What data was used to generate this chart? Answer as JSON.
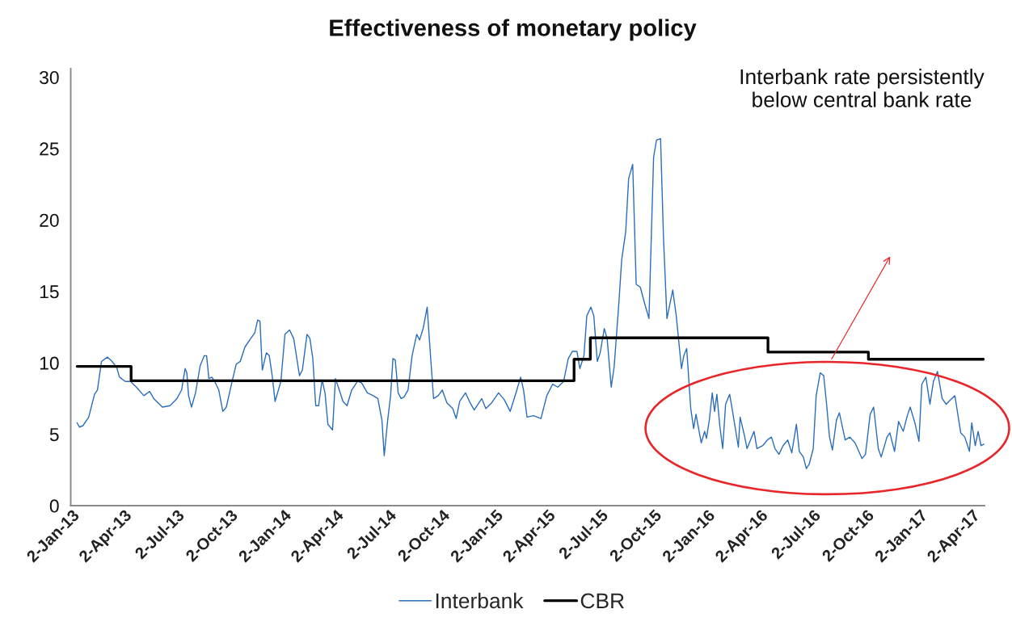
{
  "chart_data": {
    "type": "line",
    "title": "Effectiveness of monetary policy",
    "series": [
      {
        "name": "Interbank",
        "color": "#2a6ebb",
        "x": [
          "2013-01-02",
          "2013-01-06",
          "2013-01-12",
          "2013-01-22",
          "2013-02-01",
          "2013-02-06",
          "2013-02-13",
          "2013-02-23",
          "2013-03-01",
          "2013-03-11",
          "2013-03-16",
          "2013-03-26",
          "2013-04-04",
          "2013-04-14",
          "2013-04-27",
          "2013-05-07",
          "2013-05-14",
          "2013-05-29",
          "2013-06-11",
          "2013-06-23",
          "2013-07-01",
          "2013-07-07",
          "2013-07-10",
          "2013-07-13",
          "2013-07-18",
          "2013-07-25",
          "2013-08-02",
          "2013-08-09",
          "2013-08-13",
          "2013-08-17",
          "2013-08-22",
          "2013-08-27",
          "2013-09-03",
          "2013-09-10",
          "2013-09-16",
          "2013-09-26",
          "2013-10-03",
          "2013-10-10",
          "2013-10-18",
          "2013-10-28",
          "2013-11-04",
          "2013-11-09",
          "2013-11-13",
          "2013-11-17",
          "2013-11-24",
          "2013-11-29",
          "2013-12-04",
          "2013-12-09",
          "2013-12-14",
          "2013-12-19",
          "2013-12-26",
          "2014-01-03",
          "2014-01-10",
          "2014-01-14",
          "2014-01-20",
          "2014-01-25",
          "2014-02-02",
          "2014-02-07",
          "2014-02-12",
          "2014-02-17",
          "2014-02-22",
          "2014-02-28",
          "2014-03-05",
          "2014-03-10",
          "2014-03-18",
          "2014-03-23",
          "2014-03-28",
          "2014-04-05",
          "2014-04-12",
          "2014-04-20",
          "2014-04-30",
          "2014-05-07",
          "2014-05-17",
          "2014-05-27",
          "2014-06-04",
          "2014-06-11",
          "2014-06-15",
          "2014-06-21",
          "2014-06-26",
          "2014-06-30",
          "2014-07-04",
          "2014-07-09",
          "2014-07-14",
          "2014-07-19",
          "2014-07-26",
          "2014-08-02",
          "2014-08-10",
          "2014-08-15",
          "2014-08-21",
          "2014-08-28",
          "2014-09-01",
          "2014-09-08",
          "2014-09-16",
          "2014-09-23",
          "2014-10-01",
          "2014-10-11",
          "2014-10-17",
          "2014-10-23",
          "2014-11-02",
          "2014-11-10",
          "2014-11-17",
          "2014-11-30",
          "2014-12-07",
          "2014-12-17",
          "2014-12-29",
          "2015-01-08",
          "2015-01-18",
          "2015-01-28",
          "2015-02-05",
          "2015-02-10",
          "2015-02-16",
          "2015-02-27",
          "2015-03-12",
          "2015-03-22",
          "2015-04-01",
          "2015-04-10",
          "2015-04-20",
          "2015-04-28",
          "2015-05-05",
          "2015-05-13",
          "2015-05-18",
          "2015-05-25",
          "2015-05-30",
          "2015-06-06",
          "2015-06-11",
          "2015-06-17",
          "2015-06-22",
          "2015-06-29",
          "2015-07-04",
          "2015-07-11",
          "2015-07-16",
          "2015-07-24",
          "2015-07-29",
          "2015-08-05",
          "2015-08-10",
          "2015-08-17",
          "2015-08-23",
          "2015-08-30",
          "2015-09-07",
          "2015-09-14",
          "2015-09-22",
          "2015-09-27",
          "2015-10-04",
          "2015-10-09",
          "2015-10-15",
          "2015-10-25",
          "2015-10-31",
          "2015-11-09",
          "2015-11-13",
          "2015-11-18",
          "2015-11-25",
          "2015-11-30",
          "2015-12-04",
          "2015-12-13",
          "2015-12-19",
          "2015-12-22",
          "2015-12-27",
          "2016-01-01",
          "2016-01-05",
          "2016-01-09",
          "2016-01-14",
          "2016-01-19",
          "2016-01-24",
          "2016-01-31",
          "2016-02-05",
          "2016-02-15",
          "2016-02-18",
          "2016-02-25",
          "2016-03-01",
          "2016-03-13",
          "2016-03-18",
          "2016-03-28",
          "2016-04-05",
          "2016-04-12",
          "2016-04-18",
          "2016-04-25",
          "2016-05-02",
          "2016-05-10",
          "2016-05-17",
          "2016-05-25",
          "2016-05-30",
          "2016-06-06",
          "2016-06-11",
          "2016-06-16",
          "2016-06-23",
          "2016-06-28",
          "2016-07-05",
          "2016-07-11",
          "2016-07-16",
          "2016-07-21",
          "2016-07-26",
          "2016-08-02",
          "2016-08-07",
          "2016-08-17",
          "2016-08-25",
          "2016-09-03",
          "2016-09-15",
          "2016-09-21",
          "2016-09-29",
          "2016-10-05",
          "2016-10-13",
          "2016-10-18",
          "2016-10-28",
          "2016-11-02",
          "2016-11-10",
          "2016-11-17",
          "2016-11-25",
          "2016-12-02",
          "2016-12-07",
          "2016-12-15",
          "2016-12-22",
          "2016-12-27",
          "2017-01-03",
          "2017-01-10",
          "2017-01-16",
          "2017-01-23",
          "2017-01-31",
          "2017-02-07",
          "2017-02-14",
          "2017-02-22",
          "2017-02-27",
          "2017-03-04",
          "2017-03-11",
          "2017-03-19",
          "2017-03-23",
          "2017-03-29",
          "2017-04-03",
          "2017-04-08",
          "2017-04-13"
        ],
        "values": [
          5.8,
          5.5,
          5.6,
          6.2,
          7.8,
          8.1,
          10.1,
          10.4,
          10.2,
          9.7,
          9.0,
          8.7,
          8.7,
          8.3,
          7.7,
          8.0,
          7.5,
          6.9,
          7.0,
          7.5,
          8.1,
          9.6,
          9.3,
          7.7,
          6.9,
          7.9,
          9.8,
          10.5,
          10.5,
          8.9,
          9.0,
          8.7,
          8.1,
          6.6,
          6.9,
          8.7,
          9.9,
          10.1,
          11.1,
          11.7,
          12.1,
          13.0,
          12.9,
          9.5,
          10.7,
          10.5,
          9.1,
          7.3,
          8.0,
          8.7,
          12.0,
          12.3,
          11.7,
          10.7,
          9.1,
          9.5,
          12.0,
          11.7,
          10.3,
          7.0,
          7.0,
          8.8,
          7.9,
          5.7,
          5.3,
          8.9,
          8.3,
          7.3,
          7.0,
          8.1,
          8.7,
          8.6,
          7.9,
          7.7,
          7.5,
          6.0,
          3.5,
          6.0,
          7.7,
          10.3,
          10.2,
          7.9,
          7.5,
          7.6,
          8.1,
          10.5,
          12.0,
          11.6,
          12.4,
          13.9,
          11.5,
          7.5,
          7.7,
          8.1,
          7.2,
          6.8,
          6.1,
          7.3,
          7.9,
          7.2,
          6.7,
          7.5,
          6.8,
          7.2,
          7.9,
          7.4,
          6.6,
          7.9,
          9.0,
          8.1,
          6.2,
          6.3,
          6.1,
          7.7,
          8.5,
          8.3,
          8.7,
          10.3,
          10.8,
          10.8,
          9.6,
          10.5,
          13.3,
          13.9,
          13.3,
          10.1,
          10.7,
          12.4,
          11.7,
          8.3,
          9.7,
          14.1,
          17.2,
          19.2,
          22.9,
          23.9,
          15.5,
          15.3,
          14.1,
          13.1,
          24.4,
          25.6,
          25.7,
          18.8,
          13.1,
          15.1,
          13.3,
          9.6,
          10.5,
          11.0,
          6.8,
          5.4,
          6.4,
          4.4,
          5.2,
          4.7,
          6.0,
          7.9,
          6.6,
          7.8,
          5.6,
          4.0,
          7.1,
          7.8,
          6.6,
          4.1,
          6.2,
          5.0,
          4.0,
          5.2,
          4.0,
          4.2,
          4.6,
          4.8,
          4.0,
          3.6,
          4.2,
          4.6,
          3.7,
          5.7,
          3.8,
          3.4,
          2.6,
          2.9,
          4.0,
          7.7,
          9.3,
          9.1,
          7.1,
          4.8,
          3.9,
          6.0,
          6.5,
          4.6,
          4.8,
          4.4,
          3.3,
          3.6,
          6.4,
          6.9,
          4.0,
          3.4,
          4.8,
          5.1,
          3.8,
          5.9,
          5.2,
          6.3,
          6.9,
          5.8,
          4.5,
          8.5,
          9.0,
          7.1,
          8.7,
          9.4,
          7.5,
          7.1,
          7.4,
          7.7,
          6.4,
          5.1,
          4.8,
          3.8,
          5.8,
          4.2,
          5.2,
          4.2,
          4.3
        ]
      },
      {
        "name": "CBR",
        "type": "step",
        "color": "#000000",
        "x": [
          "2013-01-02",
          "2013-04-05",
          "2015-05-08",
          "2015-06-05",
          "2016-04-06",
          "2016-09-26",
          "2017-04-12"
        ],
        "values": [
          9.75,
          8.75,
          10.25,
          11.75,
          10.75,
          10.25,
          10.25
        ]
      }
    ],
    "xlim": [
      "2012-12-22",
      "2017-04-14"
    ],
    "xticks": [
      {
        "value": "2013-01-02",
        "label": "2-Jan-13"
      },
      {
        "value": "2013-04-02",
        "label": "2-Apr-13"
      },
      {
        "value": "2013-07-02",
        "label": "2-Jul-13"
      },
      {
        "value": "2013-10-02",
        "label": "2-Oct-13"
      },
      {
        "value": "2014-01-02",
        "label": "2-Jan-14"
      },
      {
        "value": "2014-04-02",
        "label": "2-Apr-14"
      },
      {
        "value": "2014-07-02",
        "label": "2-Jul-14"
      },
      {
        "value": "2014-10-02",
        "label": "2-Oct-14"
      },
      {
        "value": "2015-01-02",
        "label": "2-Jan-15"
      },
      {
        "value": "2015-04-02",
        "label": "2-Apr-15"
      },
      {
        "value": "2015-07-02",
        "label": "2-Jul-15"
      },
      {
        "value": "2015-10-02",
        "label": "2-Oct-15"
      },
      {
        "value": "2016-01-02",
        "label": "2-Jan-16"
      },
      {
        "value": "2016-04-02",
        "label": "2-Apr-16"
      },
      {
        "value": "2016-07-02",
        "label": "2-Jul-16"
      },
      {
        "value": "2016-10-02",
        "label": "2-Oct-16"
      },
      {
        "value": "2017-01-02",
        "label": "2-Jan-17"
      },
      {
        "value": "2017-04-02",
        "label": "2-Apr-17"
      }
    ],
    "ylim": [
      0,
      30.6
    ],
    "yticks": [
      0,
      5,
      10,
      15,
      20,
      25,
      30
    ],
    "annotations": [
      "Interbank rate persistently\nbelow central bank rate"
    ],
    "legend": "bottom",
    "grid": false,
    "line_style": "solid"
  }
}
